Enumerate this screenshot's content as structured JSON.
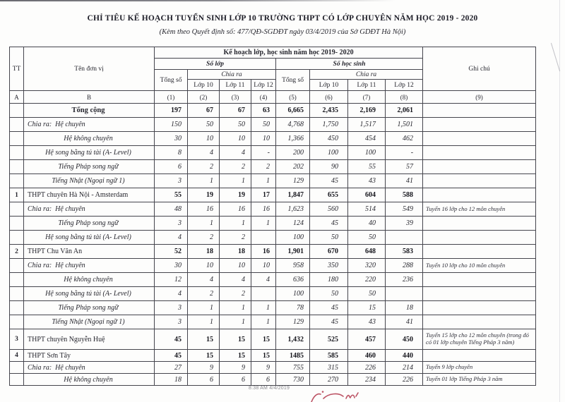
{
  "page": {
    "title": "CHỈ  TIÊU  KẾ HOẠCH TUYỂN SINH LỚP 10 TRƯỜNG THPT CÓ LỚP CHUYÊN NĂM HỌC 2019 - 2020",
    "subtitle": "(Kèm theo Quyết định số:  477/QĐ-SGDĐT ngày  03/4/2019 của Sở GDĐT Hà Nội)",
    "timestamp": "8:38 AM 4/4/2019"
  },
  "colors": {
    "ink": "#26262e",
    "border": "#45454d",
    "stamp_red": "#b43c50"
  },
  "table": {
    "header": {
      "tt": "TT",
      "unit": "Tên đơn vị",
      "plan": "Kế hoạch lớp, học sinh năm học 2019- 2020",
      "classes": "Số lớp",
      "students": "Số học sinh",
      "total": "Tổng số",
      "chia_ra": "Chia ra",
      "grade10": "Lớp 10",
      "grade11": "Lớp 11",
      "grade12": "Lớp 12",
      "note": "Ghi chú",
      "index": [
        "A",
        "B",
        "(1)",
        "(2)",
        "(3)",
        "(4)",
        "(5)",
        "(6)",
        "(7)",
        "(8)",
        "(9)"
      ]
    },
    "rows": [
      {
        "tt": "",
        "name": "Tổng cộng",
        "style": "total",
        "values": [
          "197",
          "67",
          "67",
          "63",
          "6,665",
          "2,435",
          "2,169",
          "2,061"
        ],
        "note": ""
      },
      {
        "tt": "",
        "name": "Chia ra:  Hệ chuyên",
        "style": "sub-left",
        "values": [
          "150",
          "50",
          "50",
          "50",
          "4,768",
          "1,750",
          "1,517",
          "1,501"
        ],
        "note": ""
      },
      {
        "tt": "",
        "name": "Hệ không chuyên",
        "style": "sub-center",
        "values": [
          "30",
          "10",
          "10",
          "10",
          "1,366",
          "450",
          "454",
          "462"
        ],
        "note": ""
      },
      {
        "tt": "",
        "name": "Hệ song bằng tú tài (A- Level)",
        "style": "sub-center",
        "values": [
          "8",
          "4",
          "4",
          "-",
          "200",
          "100",
          "100",
          "-"
        ],
        "note": ""
      },
      {
        "tt": "",
        "name": "Tiếng Pháp song ngữ",
        "style": "sub-center",
        "values": [
          "6",
          "2",
          "2",
          "2",
          "202",
          "90",
          "55",
          "57"
        ],
        "note": ""
      },
      {
        "tt": "",
        "name": "Tiếng Nhật (Ngoại ngữ 1)",
        "style": "sub-center",
        "values": [
          "3",
          "1",
          "1",
          "1",
          "129",
          "45",
          "43",
          "41"
        ],
        "note": ""
      },
      {
        "tt": "1",
        "name": "THPT chuyên Hà Nội - Amsterdam",
        "style": "section",
        "values": [
          "55",
          "19",
          "19",
          "17",
          "1,847",
          "655",
          "604",
          "588"
        ],
        "note": ""
      },
      {
        "tt": "",
        "name": "Chia ra:  Hệ chuyên",
        "style": "sub-left",
        "values": [
          "48",
          "16",
          "16",
          "16",
          "1,623",
          "560",
          "514",
          "549"
        ],
        "note": "Tuyển 16 lớp cho 12 môn chuyên"
      },
      {
        "tt": "",
        "name": "Tiếng Pháp song ngữ",
        "style": "sub-center",
        "values": [
          "3",
          "1",
          "1",
          "1",
          "124",
          "45",
          "40",
          "39"
        ],
        "note": ""
      },
      {
        "tt": "",
        "name": "Hệ song bằng tú tài (A- Level)",
        "style": "sub-center",
        "values": [
          "4",
          "2",
          "2",
          "",
          "100",
          "50",
          "50",
          ""
        ],
        "note": ""
      },
      {
        "tt": "2",
        "name": "THPT Chu Văn An",
        "style": "section",
        "values": [
          "52",
          "18",
          "18",
          "16",
          "1,901",
          "670",
          "648",
          "583"
        ],
        "note": ""
      },
      {
        "tt": "",
        "name": "Chia ra:  Hệ chuyên",
        "style": "sub-left",
        "values": [
          "30",
          "10",
          "10",
          "10",
          "958",
          "350",
          "320",
          "288"
        ],
        "note": "Tuyển 10 lớp cho 10 môn chuyên"
      },
      {
        "tt": "",
        "name": "Hệ không chuyên",
        "style": "sub-center",
        "values": [
          "12",
          "4",
          "4",
          "4",
          "636",
          "180",
          "220",
          "236"
        ],
        "note": ""
      },
      {
        "tt": "",
        "name": "Hệ song bằng tú tài (A- Level)",
        "style": "sub-center",
        "values": [
          "4",
          "2",
          "2",
          "",
          "100",
          "50",
          "50",
          ""
        ],
        "note": ""
      },
      {
        "tt": "",
        "name": "Tiếng Pháp song ngữ",
        "style": "sub-center",
        "values": [
          "3",
          "1",
          "1",
          "1",
          "78",
          "45",
          "15",
          "18"
        ],
        "note": ""
      },
      {
        "tt": "",
        "name": "Tiếng Nhật (Ngoại ngữ 1)",
        "style": "sub-center",
        "values": [
          "3",
          "1",
          "1",
          "1",
          "129",
          "45",
          "43",
          "41"
        ],
        "note": ""
      },
      {
        "tt": "3",
        "name": "THPT chuyên Nguyễn Huệ",
        "style": "section",
        "size": "tall",
        "values": [
          "45",
          "15",
          "15",
          "15",
          "1,432",
          "525",
          "457",
          "450"
        ],
        "note": "Tuyển 15 lớp cho 12 môn chuyên (trong đó có 01 lớp chuyên Tiếng Pháp 3 năm)"
      },
      {
        "tt": "4",
        "name": "THPT Sơn Tây",
        "style": "section",
        "size": "short",
        "values": [
          "45",
          "15",
          "15",
          "15",
          "1485",
          "585",
          "460",
          "440"
        ],
        "note": ""
      },
      {
        "tt": "",
        "name": "Chia ra:  Hệ chuyên",
        "style": "sub-left",
        "size": "short",
        "values": [
          "27",
          "9",
          "9",
          "9",
          "755",
          "315",
          "226",
          "214"
        ],
        "note": "Tuyển 9 lớp chuyên"
      },
      {
        "tt": "",
        "name": "Hệ không chuyên",
        "style": "sub-center",
        "size": "short",
        "values": [
          "18",
          "6",
          "6",
          "6",
          "730",
          "270",
          "234",
          "226"
        ],
        "note": "Tuyển 01 lớp Tiếng Pháp 3 năm"
      }
    ]
  }
}
